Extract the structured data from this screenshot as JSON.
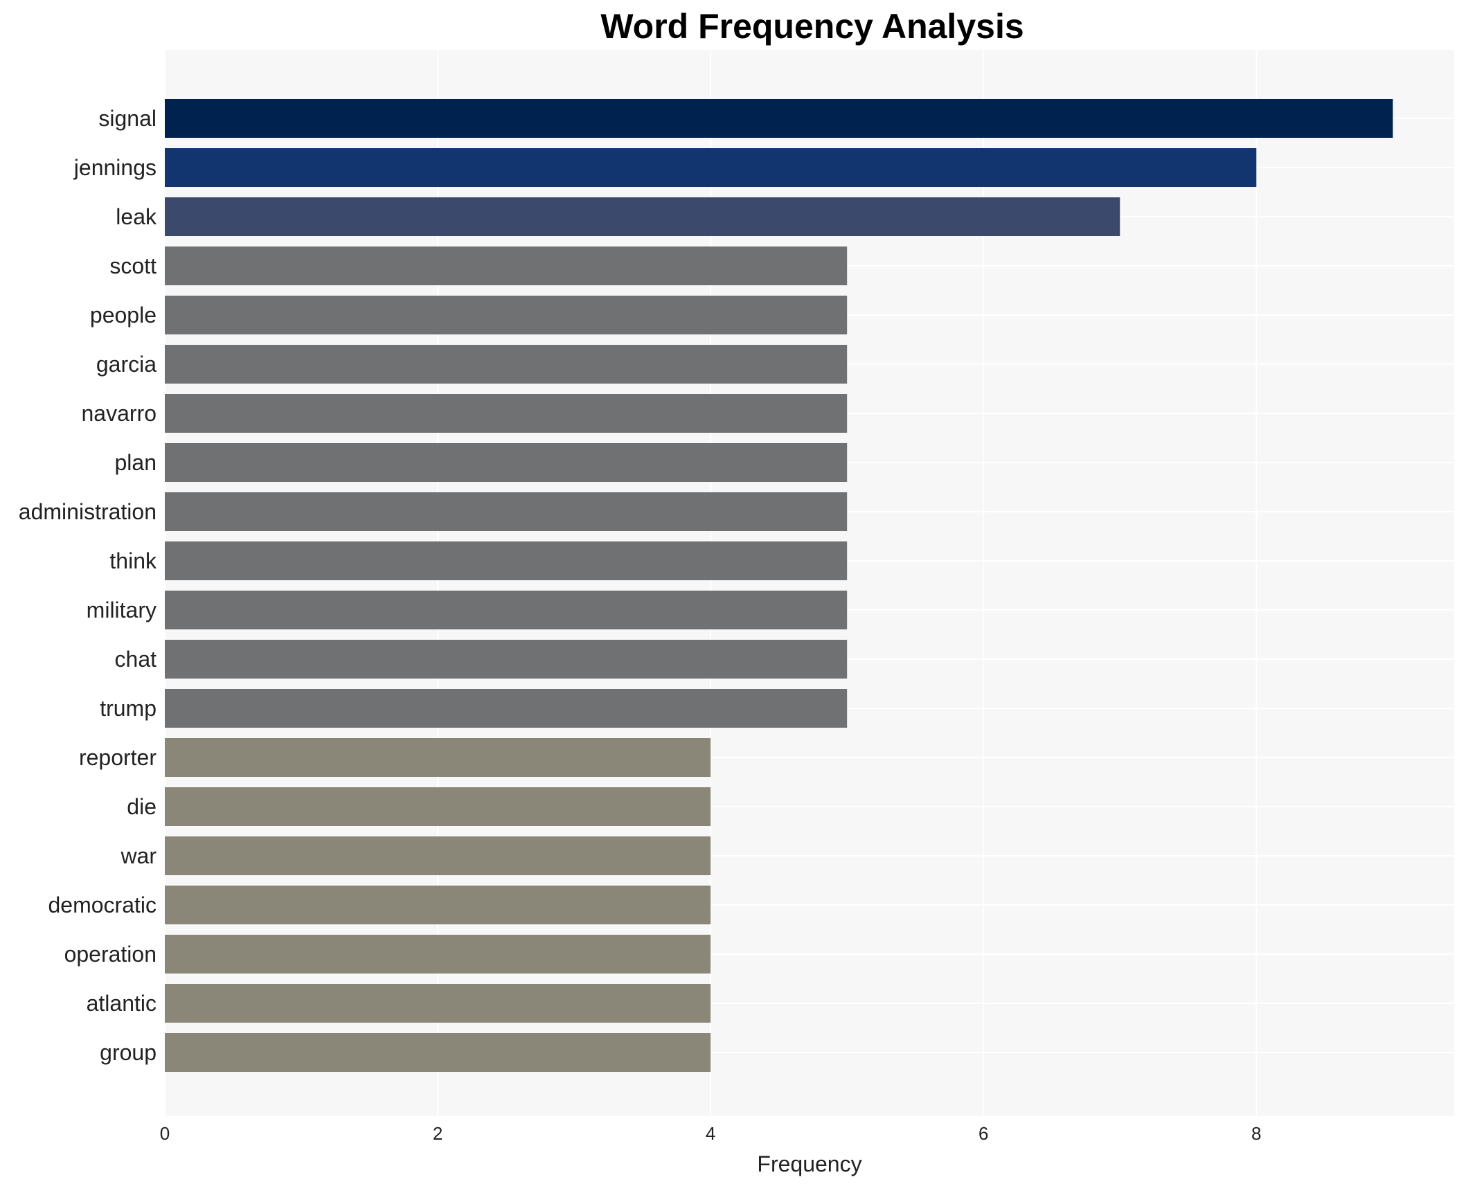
{
  "chart_data": {
    "type": "bar",
    "orientation": "horizontal",
    "title": "Word Frequency Analysis",
    "xlabel": "Frequency",
    "ylabel": "",
    "xlim": [
      0,
      9.45
    ],
    "xticks": [
      0,
      2,
      4,
      6,
      8
    ],
    "grid": true,
    "categories": [
      "signal",
      "jennings",
      "leak",
      "scott",
      "people",
      "garcia",
      "navarro",
      "plan",
      "administration",
      "think",
      "military",
      "chat",
      "trump",
      "reporter",
      "die",
      "war",
      "democratic",
      "operation",
      "atlantic",
      "group"
    ],
    "values": [
      9,
      8,
      7,
      5,
      5,
      5,
      5,
      5,
      5,
      5,
      5,
      5,
      5,
      4,
      4,
      4,
      4,
      4,
      4,
      4
    ],
    "colors": [
      "#00224e",
      "#123570",
      "#3b496c",
      "#707173",
      "#707173",
      "#707173",
      "#707173",
      "#707173",
      "#707173",
      "#707173",
      "#707173",
      "#707173",
      "#707173",
      "#8a8678",
      "#8a8678",
      "#8a8678",
      "#8a8678",
      "#8a8678",
      "#8a8678",
      "#8a8678"
    ]
  },
  "style": {
    "plot_background": "#f7f7f7",
    "grid_color": "#ffffff"
  }
}
